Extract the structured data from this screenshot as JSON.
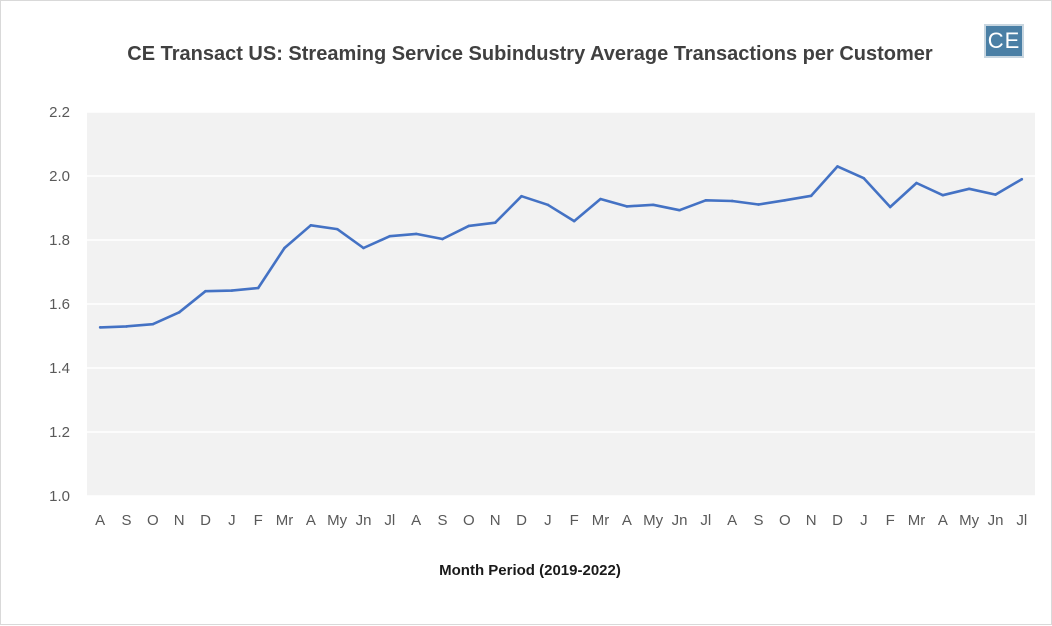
{
  "chart_data": {
    "type": "line",
    "title": "CE Transact US: Streaming Service Subindustry Average Transactions per Customer",
    "xlabel": "Month Period (2019-2022)",
    "ylabel": "",
    "ylim": [
      1.0,
      2.2
    ],
    "yticks": [
      "1.0",
      "1.2",
      "1.4",
      "1.6",
      "1.8",
      "2.0",
      "2.2"
    ],
    "grid": true,
    "legend": "none",
    "categories": [
      "A",
      "S",
      "O",
      "N",
      "D",
      "J",
      "F",
      "Mr",
      "A",
      "My",
      "Jn",
      "Jl",
      "A",
      "S",
      "O",
      "N",
      "D",
      "J",
      "F",
      "Mr",
      "A",
      "My",
      "Jn",
      "Jl",
      "A",
      "S",
      "O",
      "N",
      "D",
      "J",
      "F",
      "Mr",
      "A",
      "My",
      "Jn",
      "Jl"
    ],
    "series": [
      {
        "values": [
          1.527,
          1.53,
          1.537,
          1.574,
          1.64,
          1.642,
          1.65,
          1.775,
          1.846,
          1.834,
          1.775,
          1.812,
          1.819,
          1.803,
          1.844,
          1.854,
          1.937,
          1.91,
          1.859,
          1.928,
          1.905,
          1.91,
          1.893,
          1.924,
          1.922,
          1.911,
          1.924,
          1.938,
          2.03,
          1.993,
          1.903,
          1.978,
          1.94,
          1.96,
          1.942,
          1.99
        ],
        "color": "#4472c4"
      }
    ],
    "plot_background": "#f2f2f2",
    "gridline_color": "#ffffff"
  },
  "logo": {
    "text": "CE"
  }
}
